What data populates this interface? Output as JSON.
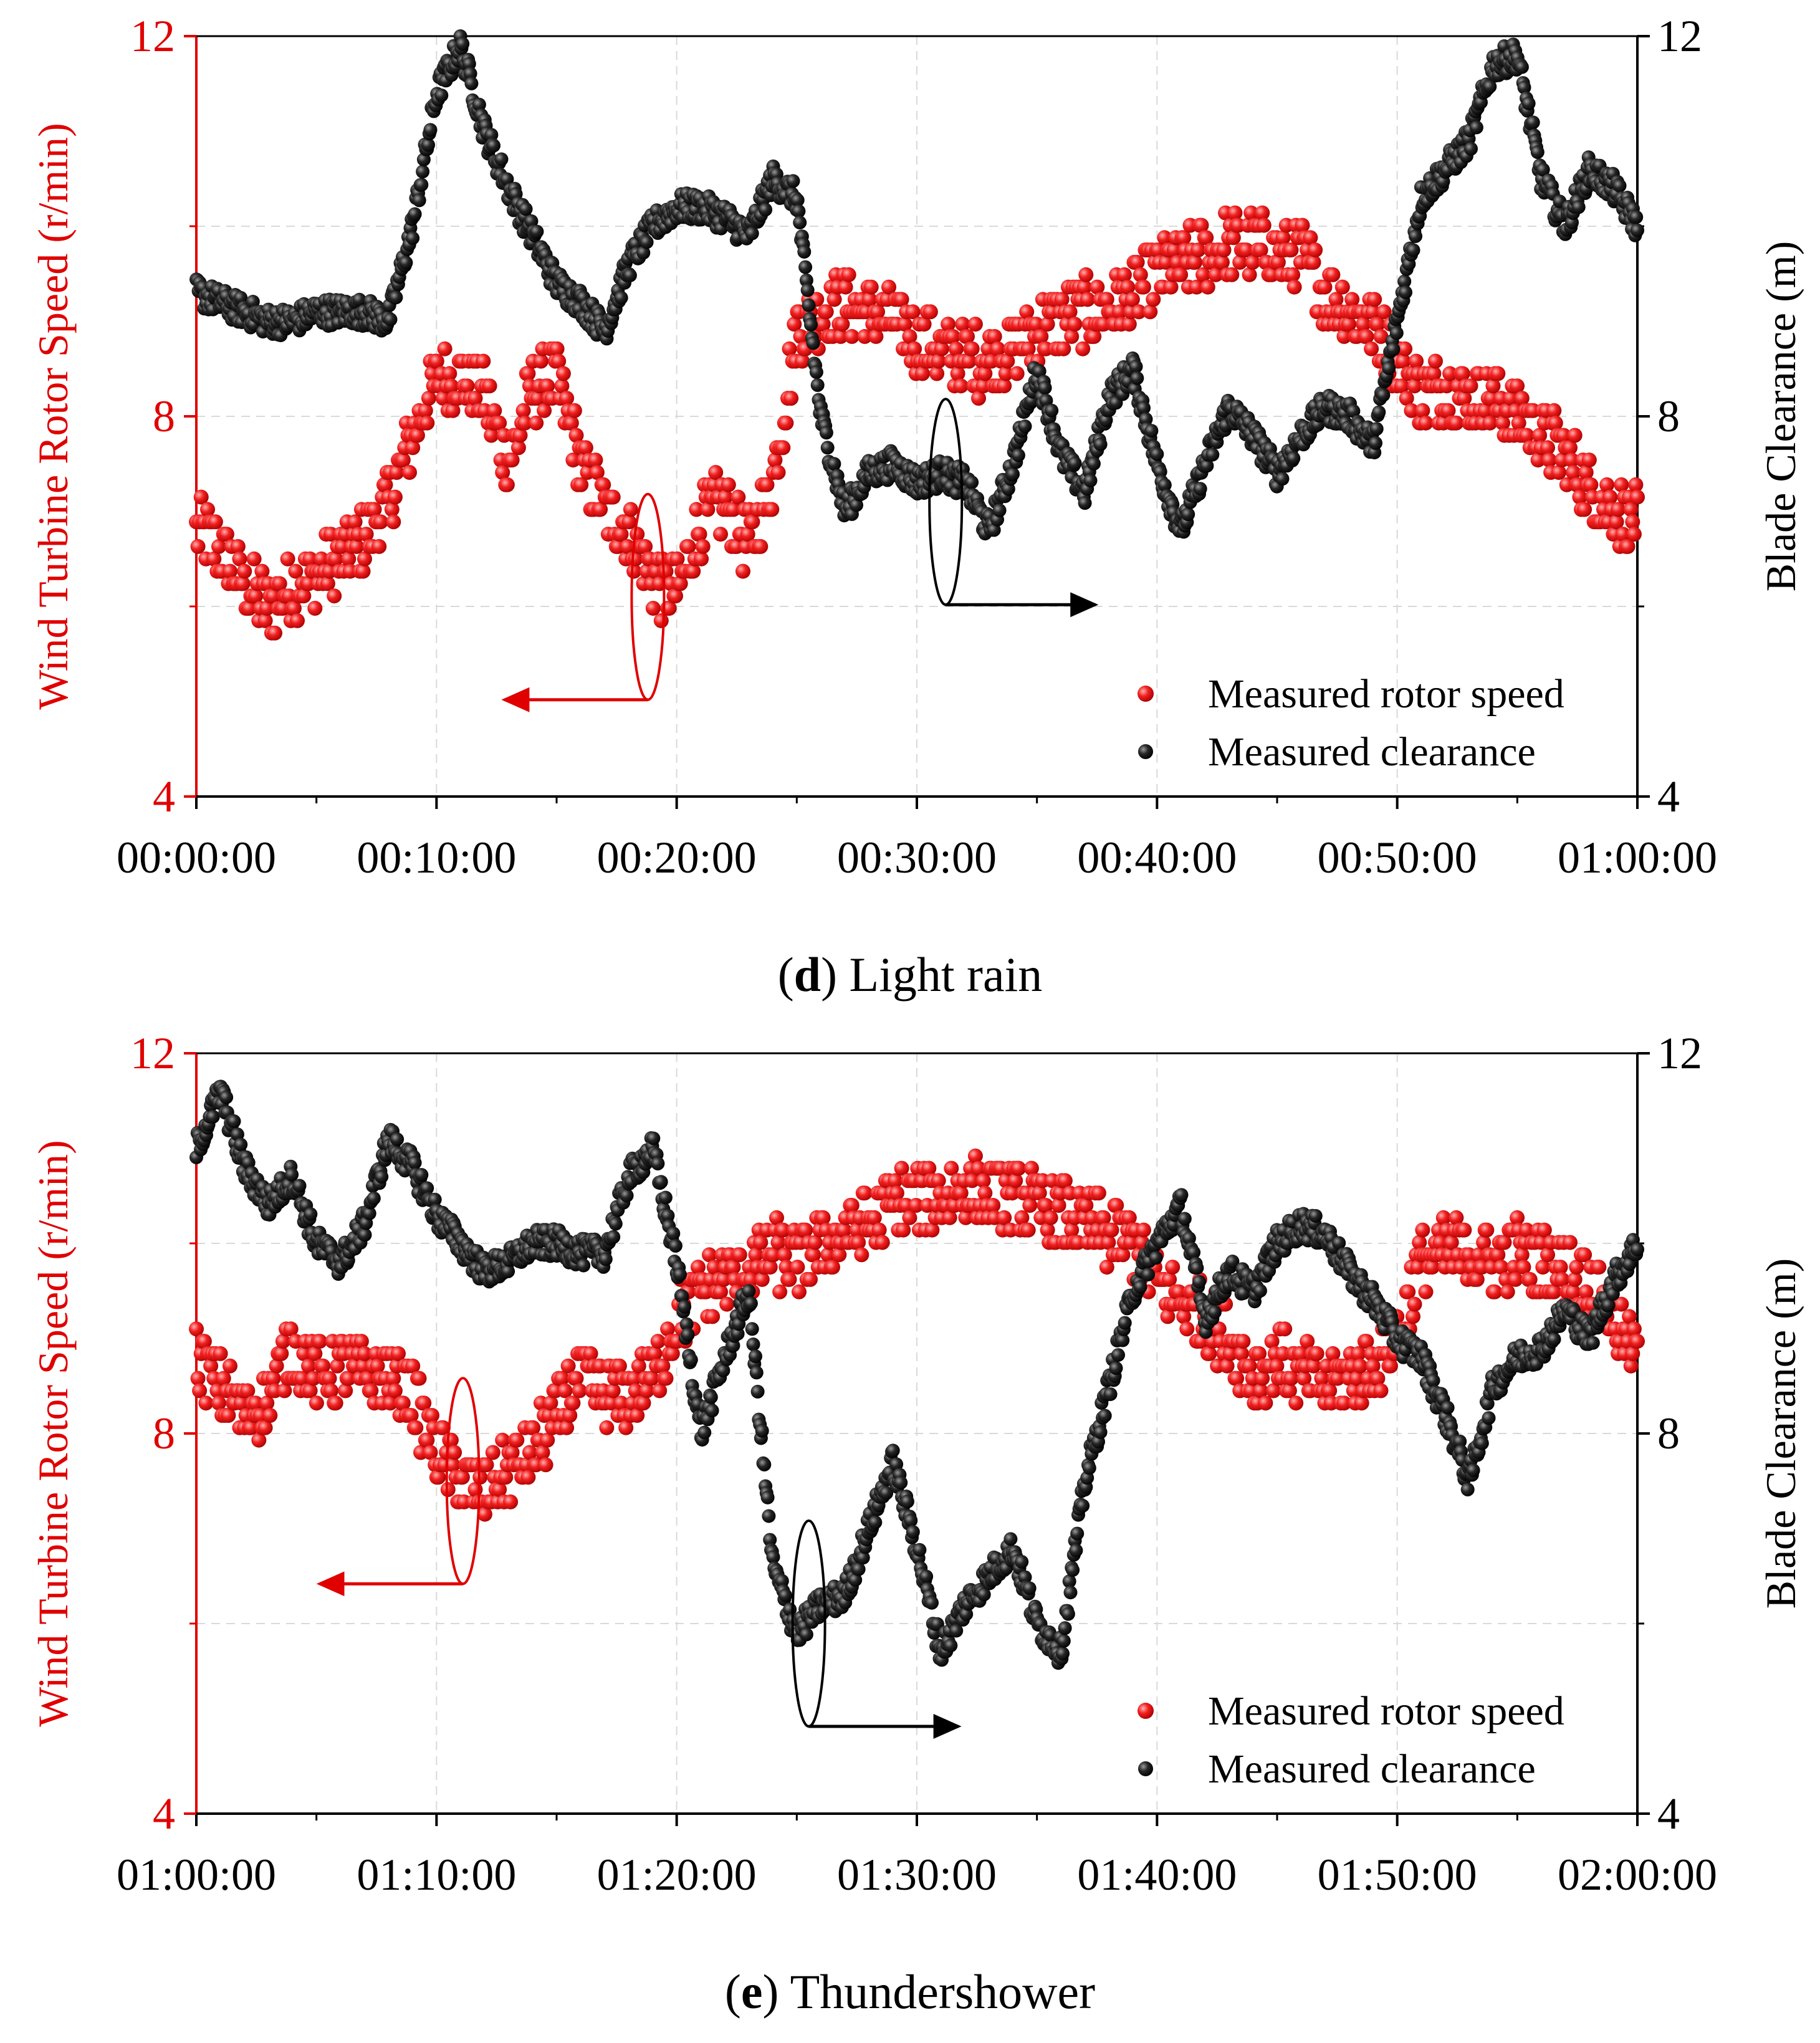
{
  "colors": {
    "speed": "#ee1c1c",
    "speed_axis": "#e00000",
    "clearance": "#111111",
    "grid": "#d9d9d9"
  },
  "chart_data": [
    {
      "type": "scatter",
      "id": "d",
      "caption_letter": "d",
      "caption_text": "Light rain",
      "caption_open": "(",
      "caption_close": ")",
      "xlabel": "",
      "ylabel_left": "Wind Turbine Rotor Speed (r/min)",
      "ylabel_right": "Blade Clearance (m)",
      "x_ticks": [
        "00:00:00",
        "00:10:00",
        "00:20:00",
        "00:30:00",
        "00:40:00",
        "00:50:00",
        "01:00:00"
      ],
      "xlim_minutes": [
        0,
        60
      ],
      "ylim_left": [
        4,
        12
      ],
      "ylim_right": [
        4,
        12
      ],
      "y_ticks_left": [
        "4",
        "8",
        "12"
      ],
      "y_ticks_right": [
        "4",
        "8",
        "12"
      ],
      "grid": "dashed",
      "legend": [
        "Measured rotor speed",
        "Measured clearance"
      ],
      "legend_position": "bottom-right",
      "series": [
        {
          "name": "Measured rotor speed",
          "axis": "left",
          "anchor_minutes": [
            0,
            1,
            2,
            3,
            4,
            5,
            6,
            7,
            8,
            9,
            10,
            11,
            12,
            13,
            14,
            15,
            16,
            17,
            18,
            19,
            20,
            21,
            22,
            23,
            24,
            25,
            26,
            27,
            28,
            29,
            30,
            31,
            32,
            33,
            34,
            35,
            36,
            37,
            38,
            39,
            40,
            41,
            42,
            43,
            44,
            45,
            46,
            47,
            48,
            49,
            50,
            51,
            52,
            53,
            54,
            55,
            56,
            57,
            58,
            59,
            60
          ],
          "anchor_values": [
            6.8,
            6.6,
            6.2,
            6.0,
            6.2,
            6.3,
            6.5,
            6.7,
            7.1,
            7.8,
            8.4,
            8.4,
            8.2,
            7.5,
            8.3,
            8.4,
            7.5,
            7.0,
            6.8,
            6.3,
            6.1,
            6.9,
            7.1,
            6.6,
            7.3,
            8.9,
            9.1,
            9.2,
            9.1,
            9.0,
            8.8,
            8.7,
            8.6,
            8.6,
            8.7,
            8.9,
            9.0,
            9.1,
            9.1,
            9.3,
            9.5,
            9.6,
            9.7,
            9.8,
            9.8,
            9.7,
            9.7,
            9.3,
            9.1,
            9.0,
            8.6,
            8.2,
            8.3,
            8.2,
            8.2,
            8.0,
            7.8,
            7.6,
            7.2,
            7.0,
            6.9
          ],
          "spread": 0.35
        },
        {
          "name": "Measured clearance",
          "axis": "right",
          "anchor_minutes": [
            0,
            1,
            2,
            3,
            4,
            5,
            6,
            7,
            8,
            9,
            10,
            11,
            12,
            13,
            14,
            15,
            16,
            17,
            18,
            19,
            20,
            21,
            22,
            23,
            24,
            25,
            26,
            27,
            28,
            29,
            30,
            31,
            32,
            33,
            34,
            35,
            36,
            37,
            38,
            39,
            40,
            41,
            42,
            43,
            44,
            45,
            46,
            47,
            48,
            49,
            50,
            51,
            52,
            53,
            54,
            55,
            56,
            57,
            58,
            59,
            60
          ],
          "anchor_values": [
            9.3,
            9.2,
            9.1,
            9.0,
            9.0,
            9.1,
            9.1,
            9.1,
            9.0,
            10.0,
            11.4,
            11.9,
            11.0,
            10.4,
            9.9,
            9.4,
            9.2,
            8.9,
            9.6,
            10.0,
            10.2,
            10.2,
            10.1,
            9.9,
            10.5,
            10.3,
            8.0,
            7.0,
            7.4,
            7.5,
            7.3,
            7.4,
            7.3,
            6.8,
            7.5,
            8.5,
            7.6,
            7.2,
            8.2,
            8.5,
            7.5,
            6.8,
            7.5,
            8.1,
            7.8,
            7.4,
            7.8,
            8.1,
            8.0,
            7.7,
            9.0,
            10.3,
            10.6,
            10.9,
            11.7,
            11.8,
            10.5,
            10.0,
            10.6,
            10.4,
            10.0
          ],
          "spread": 0.15
        }
      ],
      "annotations": [
        {
          "label": "speed-series-marker",
          "center_minutes": 18.8,
          "center_value": 6.1,
          "points_to": "left-axis"
        },
        {
          "label": "clearance-series-marker",
          "center_minutes": 31.2,
          "center_value": 7.1,
          "points_to": "right-axis"
        }
      ]
    },
    {
      "type": "scatter",
      "id": "e",
      "caption_letter": "e",
      "caption_text": "Thundershower",
      "caption_open": "(",
      "caption_close": ")",
      "xlabel": "",
      "ylabel_left": "Wind Turbine Rotor Speed (r/min)",
      "ylabel_right": "Blade Clearance (m)",
      "x_ticks": [
        "01:00:00",
        "01:10:00",
        "01:20:00",
        "01:30:00",
        "01:40:00",
        "01:50:00",
        "02:00:00"
      ],
      "xlim_minutes": [
        60,
        120
      ],
      "ylim_left": [
        4,
        12
      ],
      "ylim_right": [
        4,
        12
      ],
      "y_ticks_left": [
        "4",
        "8",
        "12"
      ],
      "y_ticks_right": [
        "4",
        "8",
        "12"
      ],
      "grid": "dashed",
      "legend": [
        "Measured rotor speed",
        "Measured clearance"
      ],
      "legend_position": "bottom-right",
      "series": [
        {
          "name": "Measured rotor speed",
          "axis": "left",
          "anchor_minutes": [
            60,
            61,
            62,
            63,
            64,
            65,
            66,
            67,
            68,
            69,
            70,
            71,
            72,
            73,
            74,
            75,
            76,
            77,
            78,
            79,
            80,
            81,
            82,
            83,
            84,
            85,
            86,
            87,
            88,
            89,
            90,
            91,
            92,
            93,
            94,
            95,
            96,
            97,
            98,
            99,
            100,
            101,
            102,
            103,
            104,
            105,
            106,
            107,
            108,
            109,
            110,
            111,
            112,
            113,
            114,
            115,
            116,
            117,
            118,
            119,
            120
          ],
          "anchor_values": [
            8.8,
            8.5,
            8.2,
            8.4,
            8.9,
            8.6,
            8.7,
            8.6,
            8.6,
            8.4,
            7.8,
            7.5,
            7.4,
            7.6,
            7.8,
            8.2,
            8.6,
            8.4,
            8.4,
            8.6,
            9.2,
            9.5,
            9.6,
            9.7,
            9.9,
            9.8,
            10.0,
            10.1,
            10.2,
            10.4,
            10.5,
            10.5,
            10.6,
            10.5,
            10.5,
            10.4,
            10.3,
            10.2,
            10.1,
            10.0,
            9.6,
            9.4,
            9.2,
            9.0,
            8.6,
            8.8,
            8.6,
            8.5,
            8.6,
            8.7,
            9.0,
            9.8,
            9.9,
            9.9,
            9.8,
            9.9,
            9.8,
            9.7,
            9.6,
            9.2,
            8.8
          ],
          "spread": 0.35
        },
        {
          "name": "Measured clearance",
          "axis": "right",
          "anchor_minutes": [
            60,
            61,
            62,
            63,
            64,
            65,
            66,
            67,
            68,
            69,
            70,
            71,
            72,
            73,
            74,
            75,
            76,
            77,
            78,
            79,
            80,
            81,
            82,
            83,
            84,
            85,
            86,
            87,
            88,
            89,
            90,
            91,
            92,
            93,
            94,
            95,
            96,
            97,
            98,
            99,
            100,
            101,
            102,
            103,
            104,
            105,
            106,
            107,
            108,
            109,
            110,
            111,
            112,
            113,
            114,
            115,
            116,
            117,
            118,
            119,
            120
          ],
          "anchor_values": [
            11.0,
            11.6,
            10.8,
            10.4,
            10.7,
            10.0,
            9.8,
            10.2,
            11.1,
            10.8,
            10.3,
            10.0,
            9.7,
            9.8,
            10.0,
            10.0,
            9.9,
            9.9,
            10.7,
            11.0,
            9.8,
            8.0,
            8.8,
            9.5,
            6.6,
            5.9,
            6.2,
            6.3,
            7.0,
            7.7,
            6.8,
            5.7,
            6.2,
            6.5,
            6.8,
            6.0,
            5.7,
            7.5,
            8.5,
            9.5,
            10.0,
            10.4,
            9.2,
            9.7,
            9.5,
            10.0,
            10.2,
            10.1,
            9.7,
            9.4,
            9.0,
            8.8,
            8.2,
            7.5,
            8.5,
            8.8,
            8.9,
            9.3,
            9.0,
            9.6,
            10.0
          ],
          "spread": 0.15
        }
      ],
      "annotations": [
        {
          "label": "speed-series-marker",
          "center_minutes": 71.1,
          "center_value": 7.5,
          "points_to": "left-axis"
        },
        {
          "label": "clearance-series-marker",
          "center_minutes": 85.5,
          "center_value": 6.0,
          "points_to": "right-axis"
        }
      ]
    }
  ]
}
